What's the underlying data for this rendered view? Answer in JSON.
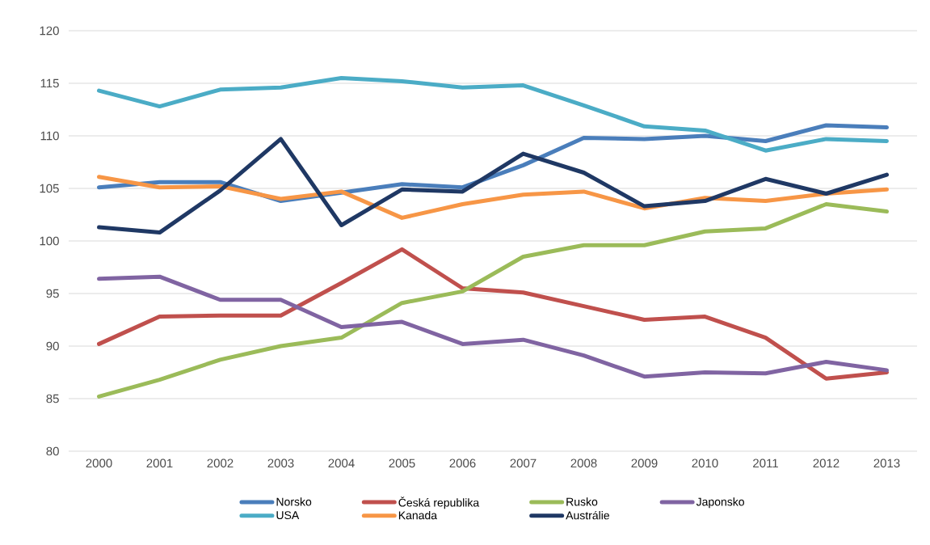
{
  "chart_data": {
    "type": "line",
    "x": [
      2000,
      2001,
      2002,
      2003,
      2004,
      2005,
      2006,
      2007,
      2008,
      2009,
      2010,
      2011,
      2012,
      2013
    ],
    "xlim": [
      1999.5,
      2013.5
    ],
    "xticks": [
      2000,
      2001,
      2002,
      2003,
      2004,
      2005,
      2006,
      2007,
      2008,
      2009,
      2010,
      2011,
      2012,
      2013
    ],
    "ylim": [
      80,
      120
    ],
    "yticks": [
      80,
      85,
      90,
      95,
      100,
      105,
      110,
      115,
      120
    ],
    "grid": "y",
    "legend": "bottom",
    "line_style": "solid",
    "series": [
      {
        "name": "Norsko",
        "color": "#4a7ebb",
        "values": [
          105.1,
          105.6,
          105.6,
          103.8,
          104.6,
          105.4,
          105.1,
          107.2,
          109.8,
          109.7,
          110.0,
          109.5,
          111.0,
          110.8
        ]
      },
      {
        "name": "Česká republika",
        "color": "#c0504d",
        "values": [
          90.2,
          92.8,
          92.9,
          92.9,
          96.0,
          99.2,
          95.5,
          95.1,
          93.8,
          92.5,
          92.8,
          90.8,
          86.9,
          87.5
        ]
      },
      {
        "name": "Rusko",
        "color": "#9bbb59",
        "values": [
          85.2,
          86.8,
          88.7,
          90.0,
          90.8,
          94.1,
          95.2,
          98.5,
          99.6,
          99.6,
          100.9,
          101.2,
          103.5,
          102.8
        ]
      },
      {
        "name": "Japonsko",
        "color": "#8064a2",
        "values": [
          96.4,
          96.6,
          94.4,
          94.4,
          91.8,
          92.3,
          90.2,
          90.6,
          89.1,
          87.1,
          87.5,
          87.4,
          88.5,
          87.7
        ]
      },
      {
        "name": "USA",
        "color": "#4bacc6",
        "values": [
          114.3,
          112.8,
          114.4,
          114.6,
          115.5,
          115.2,
          114.6,
          114.8,
          112.9,
          110.9,
          110.5,
          108.6,
          109.7,
          109.5
        ]
      },
      {
        "name": "Kanada",
        "color": "#f79646",
        "values": [
          106.1,
          105.1,
          105.2,
          104.0,
          104.7,
          102.2,
          103.5,
          104.4,
          104.7,
          103.1,
          104.1,
          103.8,
          104.5,
          104.9
        ]
      },
      {
        "name": "Austrálie",
        "color": "#1f3864",
        "values": [
          101.3,
          100.8,
          104.8,
          109.7,
          101.5,
          104.9,
          104.7,
          108.3,
          106.5,
          103.3,
          103.8,
          105.9,
          104.5,
          106.3
        ]
      }
    ]
  }
}
